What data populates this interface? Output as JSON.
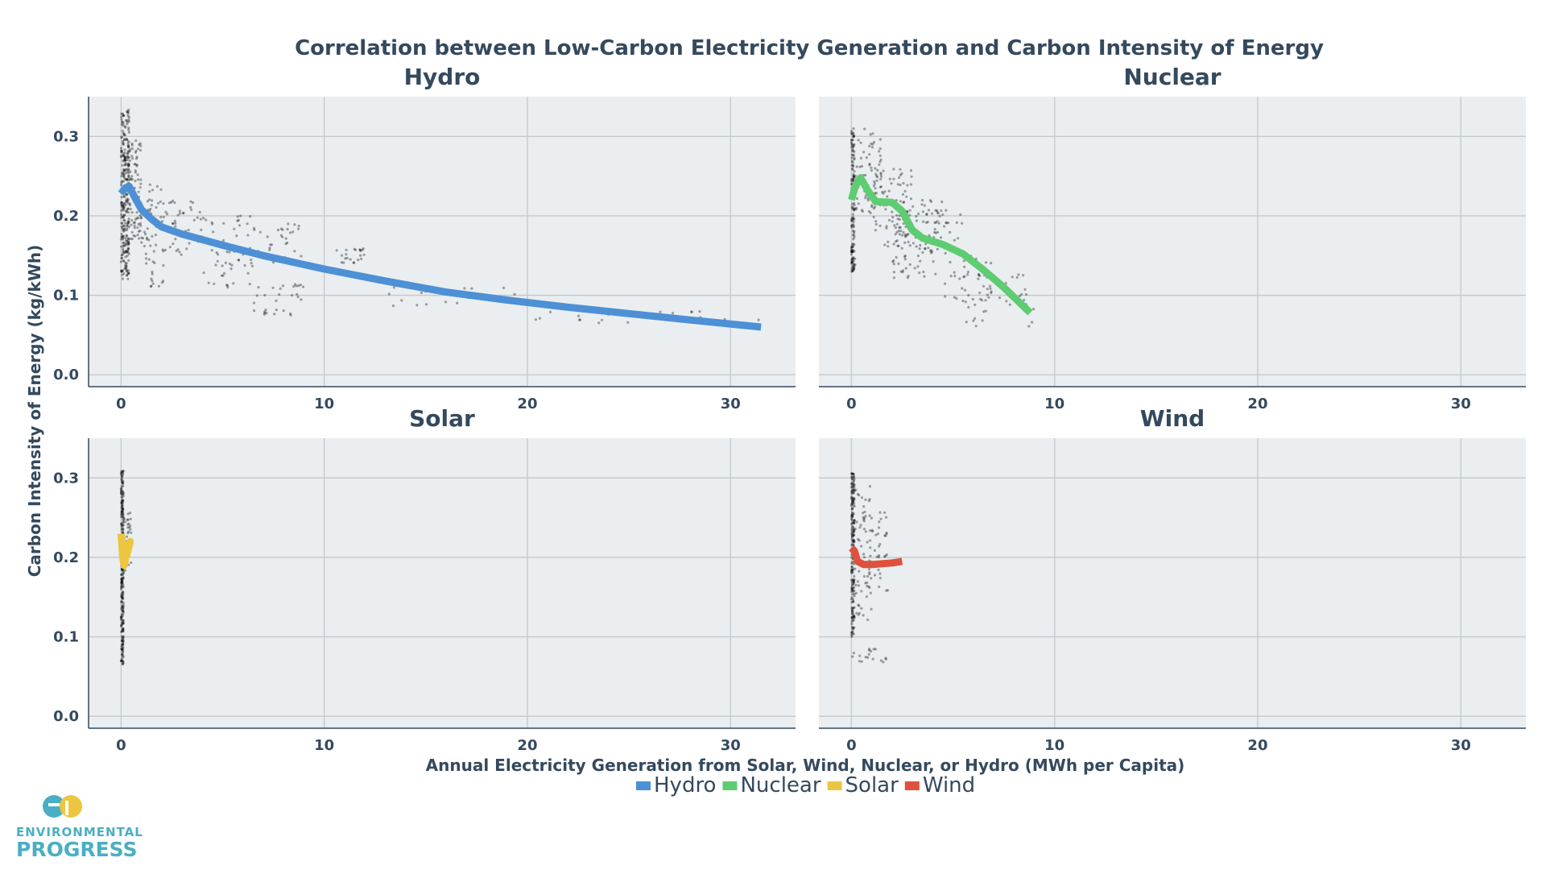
{
  "colors": {
    "panel_bg": "#eaeef0",
    "grid": "#c3c8cc",
    "axis": "#34495e",
    "text": "#34495e",
    "scatter": "#000000",
    "Hydro": "#4d90d6",
    "Nuclear": "#5ecc71",
    "Solar": "#ecc640",
    "Wind": "#e0513d",
    "logo_blue": "#4aaec4",
    "logo_yellow": "#ecc640"
  },
  "logo": {
    "line1": "ENVIRONMENTAL",
    "line2": "PROGRESS",
    "mark": "ep-logo-icon"
  },
  "chart_data": {
    "type": "scatter",
    "title": "Correlation between Low-Carbon Electricity Generation and Carbon Intensity of Energy",
    "xlabel": "Annual Electricity Generation from Solar, Wind, Nuclear, or Hydro (MWh per Capita)",
    "ylabel": "Carbon Intensity of Energy (kg/kWh)",
    "xlim": [
      -1.6,
      33.2
    ],
    "ylim": [
      -0.015,
      0.35
    ],
    "xticks": [
      0,
      10,
      20,
      30
    ],
    "yticks": [
      0.0,
      0.1,
      0.2,
      0.3
    ],
    "xtick_labels": [
      "0",
      "10",
      "20",
      "30"
    ],
    "ytick_labels": [
      "0.0",
      "0.1",
      "0.2",
      "0.3"
    ],
    "grid": true,
    "legend_placement": "bottom-center",
    "legend": [
      "Hydro",
      "Nuclear",
      "Solar",
      "Wind"
    ],
    "panels": [
      {
        "name": "Hydro",
        "trend": [
          [
            0.0,
            0.228
          ],
          [
            0.2,
            0.235
          ],
          [
            0.4,
            0.237
          ],
          [
            0.7,
            0.222
          ],
          [
            1.0,
            0.208
          ],
          [
            1.5,
            0.196
          ],
          [
            2.0,
            0.186
          ],
          [
            3.0,
            0.177
          ],
          [
            5.0,
            0.163
          ],
          [
            7.0,
            0.15
          ],
          [
            10.0,
            0.133
          ],
          [
            13.0,
            0.118
          ],
          [
            16.0,
            0.104
          ],
          [
            19.0,
            0.094
          ],
          [
            22.0,
            0.085
          ],
          [
            25.0,
            0.077
          ],
          [
            28.0,
            0.069
          ],
          [
            31.5,
            0.06
          ]
        ],
        "clusters": [
          {
            "x": [
              0,
              0.4
            ],
            "y": [
              0.12,
              0.335
            ],
            "n": 280
          },
          {
            "x": [
              0.3,
              1.0
            ],
            "y": [
              0.17,
              0.3
            ],
            "n": 90
          },
          {
            "x": [
              1.0,
              2.2
            ],
            "y": [
              0.11,
              0.24
            ],
            "n": 60
          },
          {
            "x": [
              2.2,
              4.2
            ],
            "y": [
              0.15,
              0.22
            ],
            "n": 45
          },
          {
            "x": [
              4.0,
              6.5
            ],
            "y": [
              0.11,
              0.2
            ],
            "n": 50
          },
          {
            "x": [
              6.5,
              9.0
            ],
            "y": [
              0.075,
              0.115
            ],
            "n": 30
          },
          {
            "x": [
              6.5,
              9.0
            ],
            "y": [
              0.14,
              0.19
            ],
            "n": 30
          },
          {
            "x": [
              10.5,
              12.0
            ],
            "y": [
              0.14,
              0.16
            ],
            "n": 22
          },
          {
            "x": [
              13.0,
              20.0
            ],
            "y": [
              0.085,
              0.11
            ],
            "n": 18
          },
          {
            "x": [
              20.0,
              29.0
            ],
            "y": [
              0.065,
              0.085
            ],
            "n": 24
          },
          {
            "x": [
              29.0,
              31.8
            ],
            "y": [
              0.06,
              0.07
            ],
            "n": 6
          }
        ]
      },
      {
        "name": "Nuclear",
        "trend": [
          [
            0.0,
            0.22
          ],
          [
            0.2,
            0.238
          ],
          [
            0.45,
            0.248
          ],
          [
            0.8,
            0.232
          ],
          [
            1.2,
            0.218
          ],
          [
            2.0,
            0.217
          ],
          [
            2.5,
            0.206
          ],
          [
            3.0,
            0.182
          ],
          [
            3.5,
            0.172
          ],
          [
            4.5,
            0.164
          ],
          [
            5.5,
            0.152
          ],
          [
            6.5,
            0.132
          ],
          [
            7.5,
            0.11
          ],
          [
            8.8,
            0.078
          ]
        ],
        "clusters": [
          {
            "x": [
              0,
              0.15
            ],
            "y": [
              0.13,
              0.31
            ],
            "n": 130
          },
          {
            "x": [
              0,
              0.2
            ],
            "y": [
              0.13,
              0.15
            ],
            "n": 15
          },
          {
            "x": [
              0.2,
              1.5
            ],
            "y": [
              0.2,
              0.31
            ],
            "n": 60
          },
          {
            "x": [
              1.0,
              3.0
            ],
            "y": [
              0.16,
              0.26
            ],
            "n": 80
          },
          {
            "x": [
              2.0,
              4.5
            ],
            "y": [
              0.12,
              0.22
            ],
            "n": 90
          },
          {
            "x": [
              3.5,
              5.5
            ],
            "y": [
              0.15,
              0.21
            ],
            "n": 40
          },
          {
            "x": [
              4.5,
              7.0
            ],
            "y": [
              0.09,
              0.15
            ],
            "n": 40
          },
          {
            "x": [
              5.5,
              9.0
            ],
            "y": [
              0.06,
              0.13
            ],
            "n": 35
          }
        ]
      },
      {
        "name": "Solar",
        "trend": [
          [
            0.0,
            0.23
          ],
          [
            0.08,
            0.2
          ],
          [
            0.15,
            0.19
          ],
          [
            0.3,
            0.21
          ],
          [
            0.45,
            0.22
          ],
          [
            0.25,
            0.2
          ]
        ],
        "clusters": [
          {
            "x": [
              0,
              0.12
            ],
            "y": [
              0.065,
              0.31
            ],
            "n": 260
          },
          {
            "x": [
              0.1,
              0.5
            ],
            "y": [
              0.17,
              0.26
            ],
            "n": 30
          }
        ]
      },
      {
        "name": "Wind",
        "trend": [
          [
            0.0,
            0.212
          ],
          [
            0.15,
            0.208
          ],
          [
            0.3,
            0.195
          ],
          [
            0.6,
            0.191
          ],
          [
            1.0,
            0.191
          ],
          [
            1.5,
            0.192
          ],
          [
            2.0,
            0.193
          ],
          [
            2.5,
            0.195
          ]
        ],
        "clusters": [
          {
            "x": [
              0,
              0.15
            ],
            "y": [
              0.1,
              0.31
            ],
            "n": 200
          },
          {
            "x": [
              0.15,
              1.0
            ],
            "y": [
              0.12,
              0.29
            ],
            "n": 60
          },
          {
            "x": [
              0.9,
              1.8
            ],
            "y": [
              0.2,
              0.26
            ],
            "n": 25
          },
          {
            "x": [
              0,
              1.8
            ],
            "y": [
              0.068,
              0.085
            ],
            "n": 18
          },
          {
            "x": [
              0.5,
              2.0
            ],
            "y": [
              0.14,
              0.2
            ],
            "n": 15
          }
        ]
      }
    ]
  }
}
